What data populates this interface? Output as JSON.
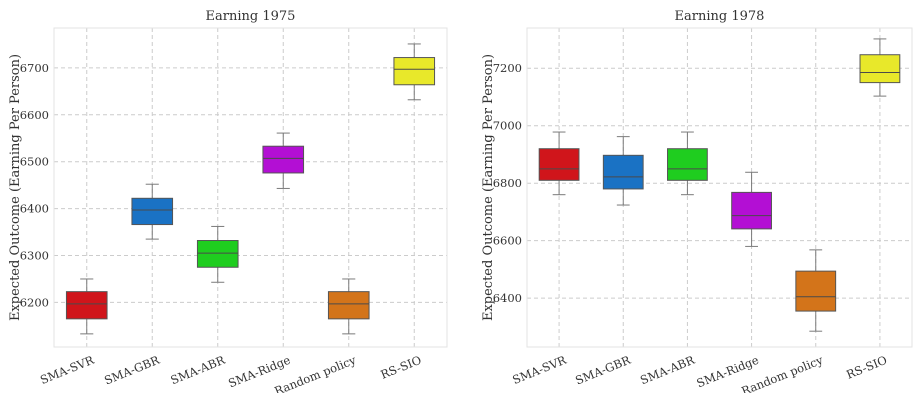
{
  "chart_data": [
    {
      "type": "box",
      "title": "Earning 1975",
      "ylabel": "Expected Outcome (Earning Per Person)",
      "categories": [
        "SMA-SVR",
        "SMA-GBR",
        "SMA-ABR",
        "SMA-Ridge",
        "Random policy",
        "RS-SIO"
      ],
      "colors": [
        "#d0151b",
        "#1a72c4",
        "#1fcd1f",
        "#b30fd4",
        "#d3741a",
        "#e8e82a"
      ],
      "ylim": [
        6105,
        6785
      ],
      "yticks": [
        6200,
        6300,
        6400,
        6500,
        6600,
        6700
      ],
      "grid": true,
      "boxes": [
        {
          "whislo": 6133,
          "q1": 6165,
          "med": 6197,
          "q3": 6223,
          "whishi": 6250
        },
        {
          "whislo": 6335,
          "q1": 6366,
          "med": 6397,
          "q3": 6422,
          "whishi": 6452
        },
        {
          "whislo": 6243,
          "q1": 6275,
          "med": 6305,
          "q3": 6332,
          "whishi": 6362
        },
        {
          "whislo": 6443,
          "q1": 6476,
          "med": 6507,
          "q3": 6533,
          "whishi": 6561
        },
        {
          "whislo": 6133,
          "q1": 6165,
          "med": 6197,
          "q3": 6223,
          "whishi": 6250
        },
        {
          "whislo": 6632,
          "q1": 6664,
          "med": 6697,
          "q3": 6722,
          "whishi": 6751
        }
      ]
    },
    {
      "type": "box",
      "title": "Earning 1978",
      "ylabel": "Expected Outcome (Earning Per Person)",
      "categories": [
        "SMA-SVR",
        "SMA-GBR",
        "SMA-ABR",
        "SMA-Ridge",
        "Random policy",
        "RS-SIO"
      ],
      "colors": [
        "#d0151b",
        "#1a72c4",
        "#1fcd1f",
        "#b30fd4",
        "#d3741a",
        "#e8e82a"
      ],
      "ylim": [
        6230,
        7340
      ],
      "yticks": [
        6400,
        6600,
        6800,
        7000,
        7200
      ],
      "grid": true,
      "boxes": [
        {
          "whislo": 6760,
          "q1": 6810,
          "med": 6850,
          "q3": 6920,
          "whishi": 6978
        },
        {
          "whislo": 6724,
          "q1": 6780,
          "med": 6822,
          "q3": 6897,
          "whishi": 6962
        },
        {
          "whislo": 6760,
          "q1": 6810,
          "med": 6850,
          "q3": 6920,
          "whishi": 6978
        },
        {
          "whislo": 6580,
          "q1": 6641,
          "med": 6687,
          "q3": 6768,
          "whishi": 6838
        },
        {
          "whislo": 6285,
          "q1": 6355,
          "med": 6405,
          "q3": 6494,
          "whishi": 6568
        },
        {
          "whislo": 7103,
          "q1": 7150,
          "med": 7185,
          "q3": 7247,
          "whishi": 7302
        }
      ]
    }
  ]
}
